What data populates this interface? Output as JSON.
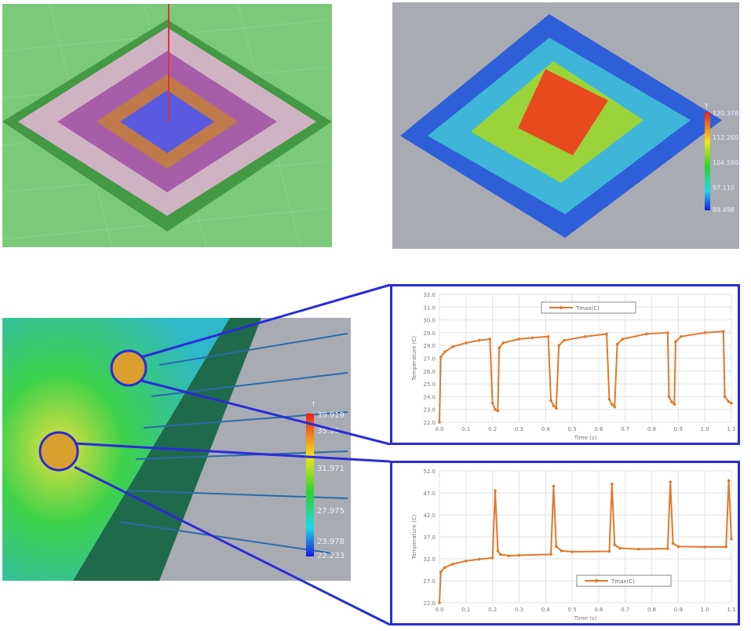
{
  "colorbar_top": {
    "title": "T",
    "labels": [
      "120.378",
      "112.260",
      "104.580",
      "97.110",
      "89.498"
    ]
  },
  "colorbar_bottom": {
    "title": "T",
    "labels": [
      "39.919",
      "35.96",
      "31.971",
      "27.975",
      "23.978",
      "22.233"
    ]
  },
  "colors": {
    "series": "#e07a2a",
    "frame": "#2b2bd9"
  },
  "chart_data": [
    {
      "type": "line",
      "xlabel": "Time (s)",
      "ylabel": "Temperature (C)",
      "xlim": [
        0,
        1.1
      ],
      "ylim": [
        22,
        32
      ],
      "xticks": [
        "0.0",
        "0.1",
        "0.2",
        "0.3",
        "0.4",
        "0.5",
        "0.6",
        "0.7",
        "0.8",
        "0.9",
        "1.0",
        "1.1"
      ],
      "yticks": [
        "22.0",
        "23.0",
        "24.0",
        "25.0",
        "26.0",
        "27.0",
        "28.0",
        "29.0",
        "30.0",
        "31.0",
        "32.0"
      ],
      "grid": true,
      "legend": "top-center",
      "series": [
        {
          "name": "Tmax(C)",
          "x": [
            0,
            0.005,
            0.02,
            0.05,
            0.1,
            0.15,
            0.19,
            0.2,
            0.21,
            0.22,
            0.225,
            0.24,
            0.3,
            0.35,
            0.41,
            0.42,
            0.43,
            0.44,
            0.45,
            0.47,
            0.55,
            0.63,
            0.64,
            0.65,
            0.66,
            0.67,
            0.69,
            0.78,
            0.86,
            0.865,
            0.875,
            0.885,
            0.89,
            0.91,
            1.0,
            1.07,
            1.075,
            1.09,
            1.1
          ],
          "y": [
            22.0,
            27.1,
            27.5,
            27.9,
            28.2,
            28.4,
            28.5,
            23.5,
            23.0,
            22.9,
            27.8,
            28.2,
            28.5,
            28.6,
            28.7,
            23.7,
            23.3,
            23.1,
            28.0,
            28.4,
            28.7,
            28.9,
            23.8,
            23.4,
            23.2,
            28.1,
            28.5,
            28.9,
            29.0,
            24.0,
            23.6,
            23.4,
            28.3,
            28.7,
            29.0,
            29.1,
            24.0,
            23.6,
            23.5
          ]
        }
      ]
    },
    {
      "type": "line",
      "xlabel": "Time (s)",
      "ylabel": "Temperature (C)",
      "xlim": [
        0,
        1.1
      ],
      "ylim": [
        22,
        52
      ],
      "xticks": [
        "0.0",
        "0.1",
        "0.2",
        "0.3",
        "0.4",
        "0.5",
        "0.6",
        "0.7",
        "0.8",
        "0.9",
        "1.0",
        "1.1"
      ],
      "yticks": [
        "22.0",
        "27.0",
        "32.0",
        "37.0",
        "42.0",
        "47.0",
        "52.0"
      ],
      "grid": true,
      "legend": "bottom-right",
      "series": [
        {
          "name": "Tmax(C)",
          "x": [
            0,
            0.005,
            0.02,
            0.05,
            0.1,
            0.15,
            0.2,
            0.21,
            0.22,
            0.23,
            0.26,
            0.3,
            0.42,
            0.43,
            0.44,
            0.46,
            0.5,
            0.64,
            0.65,
            0.66,
            0.68,
            0.75,
            0.86,
            0.87,
            0.88,
            0.9,
            1.0,
            1.08,
            1.09,
            1.1
          ],
          "y": [
            22,
            29.0,
            30.0,
            30.8,
            31.5,
            31.9,
            32.2,
            47.5,
            33.8,
            33.0,
            32.7,
            32.8,
            33.0,
            48.5,
            34.8,
            33.8,
            33.6,
            33.7,
            49.0,
            35.2,
            34.4,
            34.2,
            34.3,
            49.5,
            35.5,
            34.8,
            34.7,
            34.7,
            49.8,
            36.5
          ]
        }
      ]
    }
  ]
}
